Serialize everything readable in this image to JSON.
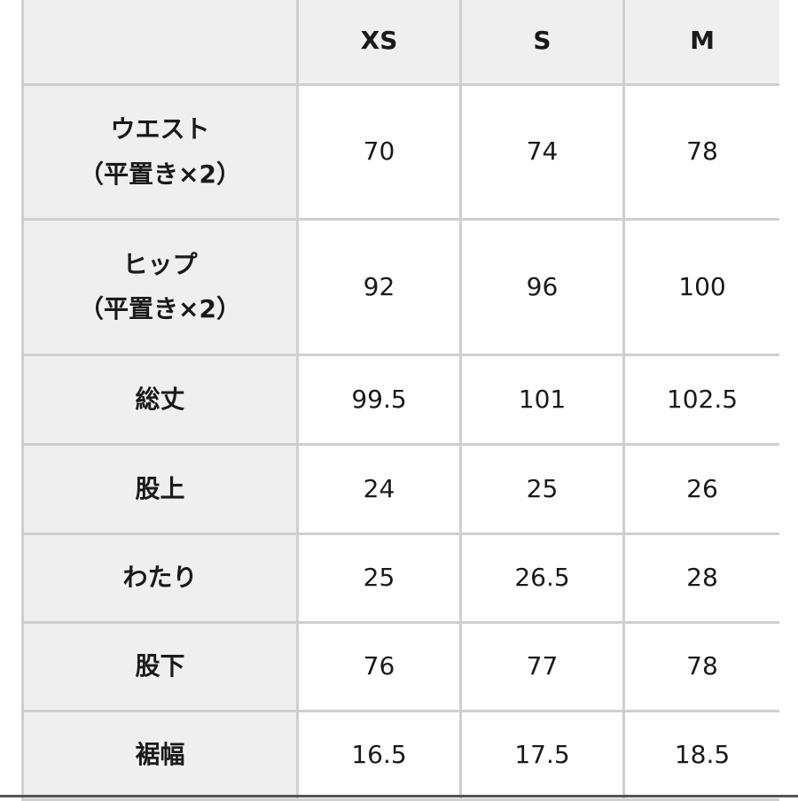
{
  "columns": [
    "",
    "XS",
    "S",
    "M"
  ],
  "rows": [
    {
      "label": "ウエスト",
      "sub": "（平置き×2）",
      "values": [
        "70",
        "74",
        "78"
      ]
    },
    {
      "label": "ヒップ",
      "sub": "（平置き×2）",
      "values": [
        "92",
        "96",
        "100"
      ]
    },
    {
      "label": "総丈",
      "sub": "",
      "values": [
        "99.5",
        "101",
        "102.5"
      ]
    },
    {
      "label": "股上",
      "sub": "",
      "values": [
        "24",
        "25",
        "26"
      ]
    },
    {
      "label": "わたり",
      "sub": "",
      "values": [
        "25",
        "26.5",
        "28"
      ]
    },
    {
      "label": "股下",
      "sub": "",
      "values": [
        "76",
        "77",
        "78"
      ]
    },
    {
      "label": "裾幅",
      "sub": "",
      "values": [
        "16.5",
        "17.5",
        "18.5"
      ]
    }
  ]
}
